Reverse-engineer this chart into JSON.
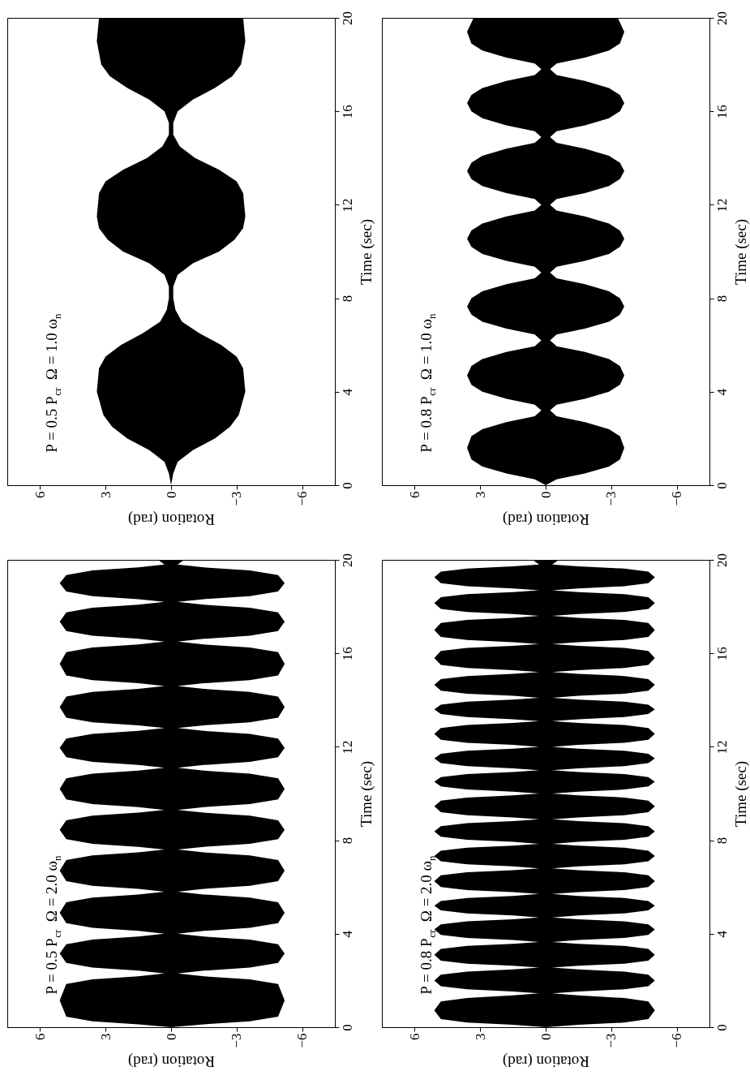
{
  "chart_data": [
    {
      "type": "area",
      "orientation": "horizontal",
      "annotations": [
        "P = 0.5 P$_{cr}$  Ω = 1.0 ω$_{n}$"
      ],
      "ylabel": "Time (sec)",
      "xlabel": "Rotation (rad)",
      "ylim": [
        0,
        20
      ],
      "yticks": [
        0,
        4,
        8,
        12,
        16,
        20
      ],
      "xlim": [
        7.5,
        -7.5
      ],
      "xticks": [
        6,
        3,
        0,
        -3,
        -6
      ],
      "x": [
        0,
        0.5,
        1.0,
        1.5,
        2.0,
        2.5,
        3.0,
        4.0,
        5.0,
        5.5,
        6.0,
        6.5,
        7.0,
        7.5,
        8.0,
        8.5,
        9.0,
        9.5,
        10.0,
        10.5,
        11.0,
        11.5,
        12.5,
        13.0,
        13.5,
        14.0,
        14.5,
        15.0,
        15.5,
        16.0,
        16.5,
        17.0,
        17.5,
        18.0,
        19.0,
        20.0
      ],
      "series": [
        {
          "color": "#000000",
          "values": [
            0,
            0.1,
            0.3,
            1.0,
            2.0,
            2.7,
            3.1,
            3.4,
            3.3,
            3.0,
            2.3,
            1.3,
            0.5,
            0.2,
            0.1,
            0.1,
            0.3,
            1.0,
            2.2,
            2.9,
            3.3,
            3.4,
            3.3,
            3.0,
            2.2,
            1.1,
            0.4,
            0.1,
            0.1,
            0.3,
            1.0,
            2.0,
            2.8,
            3.2,
            3.4,
            3.3
          ]
        },
        {
          "color": "#000000",
          "values": [
            0,
            -0.1,
            -0.3,
            -1.0,
            -2.0,
            -2.7,
            -3.1,
            -3.4,
            -3.3,
            -3.0,
            -2.3,
            -1.3,
            -0.5,
            -0.2,
            -0.1,
            -0.1,
            -0.3,
            -1.0,
            -2.2,
            -2.9,
            -3.3,
            -3.4,
            -3.3,
            -3.0,
            -2.2,
            -1.1,
            -0.4,
            -0.1,
            -0.1,
            -0.3,
            -1.0,
            -2.0,
            -2.8,
            -3.2,
            -3.4,
            -3.3
          ]
        }
      ]
    },
    {
      "type": "area",
      "orientation": "horizontal",
      "annotations": [
        "P = 0.8 P$_{cr}$  Ω = 1.0 ω$_{n}$"
      ],
      "ylabel": "Time (sec)",
      "xlabel": "Rotation (rad)",
      "ylim": [
        0,
        20
      ],
      "yticks": [
        0,
        4,
        8,
        12,
        16,
        20
      ],
      "xlim": [
        7.5,
        -7.5
      ],
      "xticks": [
        6,
        3,
        0,
        -3,
        -6
      ],
      "x": [
        0,
        0.25,
        0.5,
        0.8,
        1.1,
        1.6,
        2.1,
        2.4,
        2.7,
        2.95,
        3.2,
        3.45,
        3.7,
        4.0,
        4.3,
        4.7,
        5.1,
        5.4,
        5.7,
        5.95,
        6.2,
        6.45,
        6.7,
        7.0,
        7.3,
        7.65,
        8.0,
        8.3,
        8.6,
        8.85,
        9.1,
        9.35,
        9.6,
        9.9,
        10.2,
        10.55,
        10.9,
        11.2,
        11.5,
        11.75,
        12.0,
        12.25,
        12.5,
        12.8,
        13.1,
        13.45,
        13.8,
        14.1,
        14.4,
        14.65,
        14.9,
        15.15,
        15.4,
        15.7,
        16.0,
        16.35,
        16.7,
        17.0,
        17.3,
        17.55,
        17.8,
        18.05,
        18.3,
        18.6,
        18.9,
        19.4,
        20
      ],
      "series": [
        {
          "color": "#000000",
          "values": [
            0,
            0.5,
            1.8,
            2.9,
            3.4,
            3.6,
            3.4,
            2.9,
            1.8,
            0.5,
            0.2,
            0.5,
            1.8,
            2.9,
            3.4,
            3.6,
            3.4,
            2.9,
            1.8,
            0.5,
            0.2,
            0.5,
            1.8,
            2.9,
            3.4,
            3.6,
            3.4,
            2.9,
            1.8,
            0.5,
            0.2,
            0.5,
            1.8,
            2.9,
            3.4,
            3.6,
            3.4,
            2.9,
            1.8,
            0.5,
            0.2,
            0.5,
            1.8,
            2.9,
            3.4,
            3.6,
            3.4,
            2.9,
            1.8,
            0.5,
            0.2,
            0.5,
            1.8,
            2.9,
            3.4,
            3.6,
            3.4,
            2.9,
            1.8,
            0.5,
            0.2,
            0.5,
            1.8,
            2.9,
            3.4,
            3.6,
            3.3
          ]
        },
        {
          "color": "#000000",
          "values": [
            0,
            -0.5,
            -1.8,
            -2.9,
            -3.4,
            -3.6,
            -3.4,
            -2.9,
            -1.8,
            -0.5,
            -0.2,
            -0.5,
            -1.8,
            -2.9,
            -3.4,
            -3.6,
            -3.4,
            -2.9,
            -1.8,
            -0.5,
            -0.2,
            -0.5,
            -1.8,
            -2.9,
            -3.4,
            -3.6,
            -3.4,
            -2.9,
            -1.8,
            -0.5,
            -0.2,
            -0.5,
            -1.8,
            -2.9,
            -3.4,
            -3.6,
            -3.4,
            -2.9,
            -1.8,
            -0.5,
            -0.2,
            -0.5,
            -1.8,
            -2.9,
            -3.4,
            -3.6,
            -3.4,
            -2.9,
            -1.8,
            -0.5,
            -0.2,
            -0.5,
            -1.8,
            -2.9,
            -3.4,
            -3.6,
            -3.4,
            -2.9,
            -1.8,
            -0.5,
            -0.2,
            -0.5,
            -1.8,
            -2.9,
            -3.4,
            -3.6,
            -3.3
          ]
        }
      ]
    },
    {
      "type": "area",
      "orientation": "horizontal",
      "annotations": [
        "P = 0.5 P$_{cr}$  Ω = 2.0 ω$_{n}$"
      ],
      "ylabel": "Time (sec)",
      "xlabel": "Rotation (rad)",
      "ylim": [
        0,
        20
      ],
      "yticks": [
        0,
        4,
        8,
        12,
        16,
        20
      ],
      "xlim": [
        7.5,
        -7.5
      ],
      "xticks": [
        6,
        3,
        0,
        -3,
        -6
      ],
      "x": [
        0,
        0.12,
        0.25,
        0.45,
        1.15,
        1.85,
        2.05,
        2.18,
        2.3,
        2.42,
        2.55,
        2.75,
        3.15,
        3.55,
        3.75,
        3.88,
        4.0,
        4.12,
        4.25,
        4.45,
        4.9,
        5.35,
        5.55,
        5.68,
        5.8,
        5.92,
        6.05,
        6.25,
        6.7,
        7.15,
        7.35,
        7.48,
        7.6,
        7.72,
        7.85,
        8.05,
        8.45,
        8.85,
        9.05,
        9.18,
        9.3,
        9.42,
        9.55,
        9.75,
        10.2,
        10.65,
        10.85,
        10.98,
        11.1,
        11.22,
        11.35,
        11.55,
        11.95,
        12.35,
        12.55,
        12.68,
        12.8,
        12.92,
        13.05,
        13.25,
        13.7,
        14.15,
        14.35,
        14.48,
        14.6,
        14.72,
        14.85,
        15.05,
        15.55,
        16.05,
        16.25,
        16.38,
        16.5,
        16.62,
        16.75,
        16.95,
        17.35,
        17.75,
        17.95,
        18.08,
        18.2,
        18.32,
        18.45,
        18.65,
        19.0,
        19.35,
        19.55,
        19.68,
        19.8,
        20
      ],
      "series": [
        {
          "color": "#000000",
          "values": [
            0,
            1.5,
            3.6,
            4.8,
            5.1,
            4.8,
            3.6,
            1.5,
            0.3,
            1.5,
            3.6,
            4.8,
            5.1,
            4.8,
            3.6,
            1.5,
            0.3,
            1.5,
            3.6,
            4.8,
            5.1,
            4.8,
            3.6,
            1.5,
            0.3,
            1.5,
            3.6,
            4.8,
            5.1,
            4.8,
            3.6,
            1.5,
            0.3,
            1.5,
            3.6,
            4.8,
            5.1,
            4.8,
            3.6,
            1.5,
            0.3,
            1.5,
            3.6,
            4.8,
            5.1,
            4.8,
            3.6,
            1.5,
            0.3,
            1.5,
            3.6,
            4.8,
            5.1,
            4.8,
            3.6,
            1.5,
            0.3,
            1.5,
            3.6,
            4.8,
            5.1,
            4.8,
            3.6,
            1.5,
            0.3,
            1.5,
            3.6,
            4.8,
            5.1,
            4.8,
            3.6,
            1.5,
            0.3,
            1.5,
            3.6,
            4.8,
            5.1,
            4.8,
            3.6,
            1.5,
            0.3,
            1.5,
            3.6,
            4.8,
            5.1,
            4.8,
            3.6,
            1.5,
            0.3,
            0.6
          ]
        },
        {
          "color": "#000000",
          "values": [
            0,
            -1.5,
            -3.6,
            -4.9,
            -5.2,
            -4.9,
            -3.6,
            -1.5,
            -0.3,
            -1.5,
            -3.6,
            -4.9,
            -5.2,
            -4.9,
            -3.6,
            -1.5,
            -0.3,
            -1.5,
            -3.6,
            -4.9,
            -5.2,
            -4.9,
            -3.6,
            -1.5,
            -0.3,
            -1.5,
            -3.6,
            -4.9,
            -5.2,
            -4.9,
            -3.6,
            -1.5,
            -0.3,
            -1.5,
            -3.6,
            -4.9,
            -5.2,
            -4.9,
            -3.6,
            -1.5,
            -0.3,
            -1.5,
            -3.6,
            -4.9,
            -5.2,
            -4.9,
            -3.6,
            -1.5,
            -0.3,
            -1.5,
            -3.6,
            -4.9,
            -5.2,
            -4.9,
            -3.6,
            -1.5,
            -0.3,
            -1.5,
            -3.6,
            -4.9,
            -5.2,
            -4.9,
            -3.6,
            -1.5,
            -0.3,
            -1.5,
            -3.6,
            -4.9,
            -5.2,
            -4.9,
            -3.6,
            -1.5,
            -0.3,
            -1.5,
            -3.6,
            -4.9,
            -5.2,
            -4.9,
            -3.6,
            -1.5,
            -0.3,
            -1.5,
            -3.6,
            -4.9,
            -5.2,
            -4.9,
            -3.6,
            -1.5,
            -0.3,
            -0.6
          ]
        }
      ]
    },
    {
      "type": "area",
      "orientation": "horizontal",
      "annotations": [
        "P = 0.8 P$_{cr}$  Ω = 2.0 ω$_{n}$"
      ],
      "ylabel": "Time (sec)",
      "xlabel": "Rotation (rad)",
      "ylim": [
        0,
        20
      ],
      "yticks": [
        0,
        4,
        8,
        12,
        16,
        20
      ],
      "xlim": [
        7.5,
        -7.5
      ],
      "xticks": [
        6,
        3,
        0,
        -3,
        -6
      ],
      "x": [
        0,
        0.1,
        0.2,
        0.35,
        0.72,
        1.1,
        1.25,
        1.36,
        1.45,
        1.53,
        1.62,
        1.75,
        2.0,
        2.25,
        2.38,
        2.47,
        2.55,
        2.63,
        2.72,
        2.85,
        3.1,
        3.35,
        3.48,
        3.57,
        3.65,
        3.73,
        3.82,
        3.95,
        4.18,
        4.4,
        4.53,
        4.62,
        4.7,
        4.78,
        4.87,
        5.0,
        5.2,
        5.4,
        5.53,
        5.62,
        5.7,
        5.78,
        5.87,
        6.0,
        6.25,
        6.5,
        6.63,
        6.72,
        6.8,
        6.88,
        6.97,
        7.1,
        7.33,
        7.55,
        7.68,
        7.77,
        7.85,
        7.93,
        8.02,
        8.15,
        8.38,
        8.6,
        8.73,
        8.82,
        8.9,
        8.98,
        9.07,
        9.2,
        9.45,
        9.7,
        9.83,
        9.92,
        10.0,
        10.08,
        10.17,
        10.3,
        10.5,
        10.7,
        10.83,
        10.92,
        11.0,
        11.08,
        11.17,
        11.3,
        11.5,
        11.7,
        11.83,
        11.92,
        12.0,
        12.08,
        12.17,
        12.3,
        12.55,
        12.8,
        12.93,
        13.02,
        13.1,
        13.18,
        13.27,
        13.4,
        13.6,
        13.8,
        13.93,
        14.02,
        14.1,
        14.18,
        14.27,
        14.4,
        14.65,
        14.9,
        15.03,
        15.12,
        15.2,
        15.28,
        15.37,
        15.5,
        15.8,
        16.1,
        16.23,
        16.32,
        16.4,
        16.48,
        16.57,
        16.7,
        17.0,
        17.3,
        17.43,
        17.52,
        17.6,
        17.68,
        17.77,
        17.9,
        18.15,
        18.4,
        18.53,
        18.62,
        18.7,
        18.78,
        18.87,
        19.0,
        19.25,
        19.5,
        19.63,
        19.72,
        19.8,
        20
      ],
      "series": [
        {
          "color": "#000000",
          "values": [
            0,
            1.5,
            3.6,
            4.8,
            5.1,
            4.8,
            3.6,
            1.5,
            0.3,
            1.5,
            3.6,
            4.8,
            5.1,
            4.8,
            3.6,
            1.5,
            0.3,
            1.5,
            3.6,
            4.8,
            5.1,
            4.8,
            3.6,
            1.5,
            0.3,
            1.5,
            3.6,
            4.8,
            5.1,
            4.8,
            3.6,
            1.5,
            0.3,
            1.5,
            3.6,
            4.8,
            5.1,
            4.8,
            3.6,
            1.5,
            0.3,
            1.5,
            3.6,
            4.8,
            5.1,
            4.8,
            3.6,
            1.5,
            0.3,
            1.5,
            3.6,
            4.8,
            5.1,
            4.8,
            3.6,
            1.5,
            0.3,
            1.5,
            3.6,
            4.8,
            5.1,
            4.8,
            3.6,
            1.5,
            0.3,
            1.5,
            3.6,
            4.8,
            5.1,
            4.8,
            3.6,
            1.5,
            0.3,
            1.5,
            3.6,
            4.8,
            5.1,
            4.8,
            3.6,
            1.5,
            0.3,
            1.5,
            3.6,
            4.8,
            5.1,
            4.8,
            3.6,
            1.5,
            0.3,
            1.5,
            3.6,
            4.8,
            5.1,
            4.8,
            3.6,
            1.5,
            0.3,
            1.5,
            3.6,
            4.8,
            5.1,
            4.8,
            3.6,
            1.5,
            0.3,
            1.5,
            3.6,
            4.8,
            5.1,
            4.8,
            3.6,
            1.5,
            0.3,
            1.5,
            3.6,
            4.8,
            5.1,
            4.8,
            3.6,
            1.5,
            0.3,
            1.5,
            3.6,
            4.8,
            5.1,
            4.8,
            3.6,
            1.5,
            0.3,
            1.5,
            3.6,
            4.8,
            5.1,
            4.8,
            3.6,
            1.5,
            0.3,
            1.5,
            3.6,
            4.8,
            5.1,
            4.8,
            3.6,
            1.5,
            0.3,
            0.6
          ]
        },
        {
          "color": "#000000",
          "values": [
            0,
            -1.5,
            -3.6,
            -4.7,
            -5.0,
            -4.7,
            -3.6,
            -1.5,
            -0.3,
            -1.5,
            -3.6,
            -4.7,
            -5.0,
            -4.7,
            -3.6,
            -1.5,
            -0.3,
            -1.5,
            -3.6,
            -4.7,
            -5.0,
            -4.7,
            -3.6,
            -1.5,
            -0.3,
            -1.5,
            -3.6,
            -4.7,
            -5.0,
            -4.7,
            -3.6,
            -1.5,
            -0.3,
            -1.5,
            -3.6,
            -4.7,
            -5.0,
            -4.7,
            -3.6,
            -1.5,
            -0.3,
            -1.5,
            -3.6,
            -4.7,
            -5.0,
            -4.7,
            -3.6,
            -1.5,
            -0.3,
            -1.5,
            -3.6,
            -4.7,
            -5.0,
            -4.7,
            -3.6,
            -1.5,
            -0.3,
            -1.5,
            -3.6,
            -4.7,
            -5.0,
            -4.7,
            -3.6,
            -1.5,
            -0.3,
            -1.5,
            -3.6,
            -4.7,
            -5.0,
            -4.7,
            -3.6,
            -1.5,
            -0.3,
            -1.5,
            -3.6,
            -4.7,
            -5.0,
            -4.7,
            -3.6,
            -1.5,
            -0.3,
            -1.5,
            -3.6,
            -4.7,
            -5.0,
            -4.7,
            -3.6,
            -1.5,
            -0.3,
            -1.5,
            -3.6,
            -4.7,
            -5.0,
            -4.7,
            -3.6,
            -1.5,
            -0.3,
            -1.5,
            -3.6,
            -4.7,
            -5.0,
            -4.7,
            -3.6,
            -1.5,
            -0.3,
            -1.5,
            -3.6,
            -4.7,
            -5.0,
            -4.7,
            -3.6,
            -1.5,
            -0.3,
            -1.5,
            -3.6,
            -4.7,
            -5.0,
            -4.7,
            -3.6,
            -1.5,
            -0.3,
            -1.5,
            -3.6,
            -4.7,
            -5.0,
            -4.7,
            -3.6,
            -1.5,
            -0.3,
            -1.5,
            -3.6,
            -4.7,
            -5.0,
            -4.7,
            -3.6,
            -1.5,
            -0.3,
            -1.5,
            -3.6,
            -4.7,
            -5.0,
            -4.7,
            -3.6,
            -1.5,
            -0.3,
            -0.6
          ]
        }
      ]
    }
  ]
}
